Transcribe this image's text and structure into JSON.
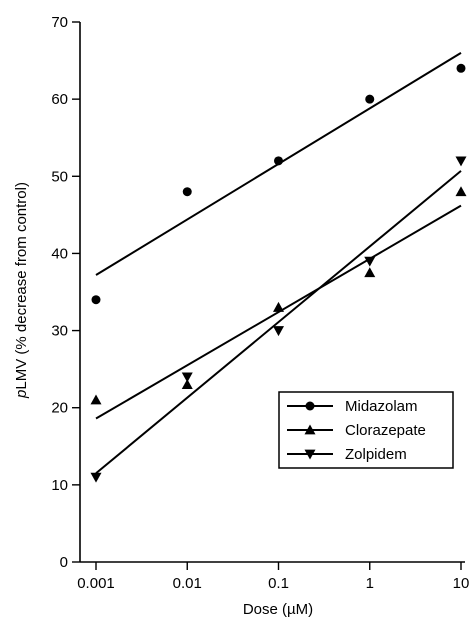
{
  "chart_data": {
    "type": "scatter",
    "title": "",
    "xlabel": "Dose (µM)",
    "ylabel_italic": "p",
    "ylabel_rest": "LMV (% decrease from control)",
    "x_scale": "log",
    "x_ticks": [
      0.001,
      0.01,
      0.1,
      1,
      10
    ],
    "x_tick_labels": [
      "0.001",
      "0.01",
      "0.1",
      "1",
      "10"
    ],
    "xlim": [
      0.001,
      10
    ],
    "y_ticks": [
      0,
      10,
      20,
      30,
      40,
      50,
      60,
      70
    ],
    "y_tick_labels": [
      "0",
      "10",
      "20",
      "30",
      "40",
      "50",
      "60",
      "70"
    ],
    "ylim": [
      0,
      70
    ],
    "grid": false,
    "legend_position": "bottom-right",
    "x": [
      0.001,
      0.01,
      0.1,
      1,
      10
    ],
    "series": [
      {
        "name": "Midazolam",
        "marker": "circle",
        "values": [
          34,
          48,
          52,
          60,
          64
        ],
        "fit": [
          37.2,
          66.0
        ]
      },
      {
        "name": "Clorazepate",
        "marker": "triangle-up",
        "values": [
          21,
          23,
          33,
          37.5,
          48
        ],
        "fit": [
          18.6,
          46.2
        ]
      },
      {
        "name": "Zolpidem",
        "marker": "triangle-down",
        "values": [
          11,
          24,
          30,
          39,
          52
        ],
        "fit": [
          11.5,
          50.7
        ]
      }
    ]
  }
}
